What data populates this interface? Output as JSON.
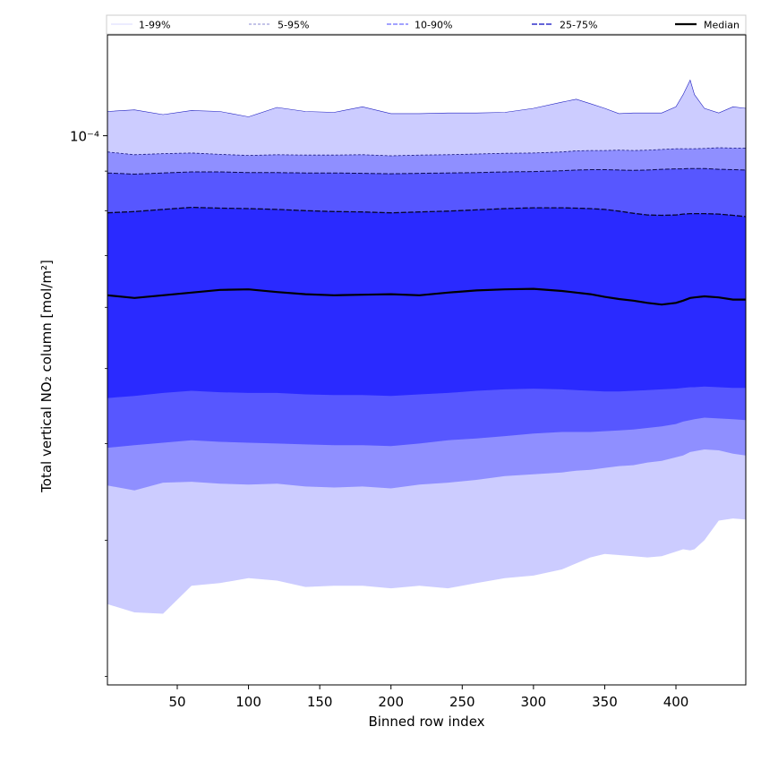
{
  "chart_data": {
    "type": "area",
    "title": "",
    "xlabel": "Binned row index",
    "ylabel": "Total vertical NO₂ column [mol/m²]",
    "yscale": "log",
    "xlim": [
      1,
      449
    ],
    "ylim": [
      1.95e-05,
      0.000135
    ],
    "x_ticks": [
      50,
      100,
      150,
      200,
      250,
      300,
      350,
      400
    ],
    "x_tick_labels": [
      "50",
      "100",
      "150",
      "200",
      "250",
      "300",
      "350",
      "400"
    ],
    "y_tick_label": "10⁻⁴",
    "y_tick_value": 0.0001,
    "y_minor_ticks": [
      2e-05,
      3e-05,
      4e-05,
      5e-05,
      6e-05,
      7e-05,
      8e-05,
      9e-05
    ],
    "legend": {
      "placement": "top",
      "entries": [
        "1-99%",
        "5-95%",
        "10-90%",
        "25-75%",
        "Median"
      ]
    },
    "colors": {
      "band_1_99": "#ccccff",
      "band_5_95": "#8f8fff",
      "band_10_90": "#5757ff",
      "band_25_75": "#2a2aff",
      "median": "#000000",
      "frame": "#000000"
    },
    "x": [
      1,
      20,
      40,
      60,
      80,
      100,
      120,
      140,
      160,
      180,
      200,
      220,
      240,
      260,
      280,
      300,
      320,
      330,
      340,
      350,
      360,
      370,
      380,
      390,
      400,
      405,
      410,
      413,
      420,
      430,
      440,
      449
    ],
    "series": [
      {
        "name": "1-99%",
        "role": "low",
        "values": [
          2.48e-05,
          2.42e-05,
          2.41e-05,
          2.62e-05,
          2.64e-05,
          2.68e-05,
          2.66e-05,
          2.61e-05,
          2.62e-05,
          2.62e-05,
          2.6e-05,
          2.62e-05,
          2.6e-05,
          2.64e-05,
          2.68e-05,
          2.7e-05,
          2.75e-05,
          2.8e-05,
          2.85e-05,
          2.88e-05,
          2.87e-05,
          2.86e-05,
          2.85e-05,
          2.86e-05,
          2.9e-05,
          2.92e-05,
          2.91e-05,
          2.92e-05,
          3e-05,
          3.18e-05,
          3.2e-05,
          3.19e-05
        ]
      },
      {
        "name": "1-99%",
        "role": "high",
        "values": [
          0.0001075,
          0.000108,
          0.0001065,
          0.0001078,
          0.0001075,
          0.0001058,
          0.0001088,
          0.0001075,
          0.0001072,
          0.000109,
          0.0001068,
          0.0001068,
          0.000107,
          0.000107,
          0.0001072,
          0.0001085,
          0.0001105,
          0.0001115,
          0.00011,
          0.0001085,
          0.0001068,
          0.000107,
          0.000107,
          0.000107,
          0.000109,
          0.000113,
          0.000118,
          0.000113,
          0.0001085,
          0.000107,
          0.000109,
          0.0001085
        ]
      },
      {
        "name": "5-95%",
        "role": "low",
        "values": [
          3.53e-05,
          3.48e-05,
          3.56e-05,
          3.57e-05,
          3.55e-05,
          3.54e-05,
          3.55e-05,
          3.52e-05,
          3.51e-05,
          3.52e-05,
          3.5e-05,
          3.54e-05,
          3.56e-05,
          3.59e-05,
          3.63e-05,
          3.65e-05,
          3.67e-05,
          3.69e-05,
          3.7e-05,
          3.72e-05,
          3.74e-05,
          3.75e-05,
          3.78e-05,
          3.8e-05,
          3.84e-05,
          3.86e-05,
          3.9e-05,
          3.91e-05,
          3.93e-05,
          3.92e-05,
          3.88e-05,
          3.86e-05
        ]
      },
      {
        "name": "5-95%",
        "role": "high",
        "values": [
          9.53e-05,
          9.45e-05,
          9.48e-05,
          9.5e-05,
          9.46e-05,
          9.43e-05,
          9.45e-05,
          9.44e-05,
          9.44e-05,
          9.45e-05,
          9.42e-05,
          9.44e-05,
          9.45e-05,
          9.47e-05,
          9.49e-05,
          9.5e-05,
          9.53e-05,
          9.56e-05,
          9.57e-05,
          9.57e-05,
          9.58e-05,
          9.57e-05,
          9.58e-05,
          9.6e-05,
          9.62e-05,
          9.62e-05,
          9.62e-05,
          9.62e-05,
          9.63e-05,
          9.65e-05,
          9.64e-05,
          9.64e-05
        ]
      },
      {
        "name": "10-90%",
        "role": "low",
        "values": [
          3.95e-05,
          3.98e-05,
          4.01e-05,
          4.04e-05,
          4.02e-05,
          4.01e-05,
          4e-05,
          3.99e-05,
          3.98e-05,
          3.98e-05,
          3.97e-05,
          4e-05,
          4.04e-05,
          4.06e-05,
          4.09e-05,
          4.12e-05,
          4.14e-05,
          4.14e-05,
          4.14e-05,
          4.15e-05,
          4.16e-05,
          4.17e-05,
          4.19e-05,
          4.21e-05,
          4.24e-05,
          4.27e-05,
          4.29e-05,
          4.3e-05,
          4.32e-05,
          4.31e-05,
          4.3e-05,
          4.29e-05
        ]
      },
      {
        "name": "10-90%",
        "role": "high",
        "values": [
          8.95e-05,
          8.92e-05,
          8.95e-05,
          8.98e-05,
          8.98e-05,
          8.96e-05,
          8.96e-05,
          8.95e-05,
          8.95e-05,
          8.94e-05,
          8.93e-05,
          8.94e-05,
          8.95e-05,
          8.96e-05,
          8.98e-05,
          8.99e-05,
          9.01e-05,
          9.03e-05,
          9.04e-05,
          9.04e-05,
          9.03e-05,
          9.02e-05,
          9.03e-05,
          9.05e-05,
          9.06e-05,
          9.06e-05,
          9.07e-05,
          9.07e-05,
          9.07e-05,
          9.05e-05,
          9.04e-05,
          9.03e-05
        ]
      },
      {
        "name": "25-75%",
        "role": "low",
        "values": [
          4.58e-05,
          4.61e-05,
          4.65e-05,
          4.68e-05,
          4.66e-05,
          4.65e-05,
          4.65e-05,
          4.63e-05,
          4.62e-05,
          4.62e-05,
          4.61e-05,
          4.63e-05,
          4.65e-05,
          4.68e-05,
          4.7e-05,
          4.71e-05,
          4.7e-05,
          4.69e-05,
          4.68e-05,
          4.67e-05,
          4.67e-05,
          4.68e-05,
          4.69e-05,
          4.7e-05,
          4.71e-05,
          4.72e-05,
          4.73e-05,
          4.73e-05,
          4.74e-05,
          4.73e-05,
          4.72e-05,
          4.72e-05
        ]
      },
      {
        "name": "25-75%",
        "role": "high",
        "values": [
          7.95e-05,
          7.98e-05,
          8.03e-05,
          8.08e-05,
          8.06e-05,
          8.05e-05,
          8.03e-05,
          8e-05,
          7.98e-05,
          7.97e-05,
          7.95e-05,
          7.97e-05,
          7.99e-05,
          8.02e-05,
          8.05e-05,
          8.07e-05,
          8.07e-05,
          8.06e-05,
          8.05e-05,
          8.03e-05,
          7.99e-05,
          7.94e-05,
          7.9e-05,
          7.89e-05,
          7.9e-05,
          7.92e-05,
          7.93e-05,
          7.93e-05,
          7.93e-05,
          7.92e-05,
          7.89e-05,
          7.86e-05
        ]
      },
      {
        "name": "Median",
        "role": "line",
        "values": [
          6.22e-05,
          6.17e-05,
          6.22e-05,
          6.27e-05,
          6.32e-05,
          6.33e-05,
          6.28e-05,
          6.24e-05,
          6.22e-05,
          6.23e-05,
          6.24e-05,
          6.22e-05,
          6.27e-05,
          6.31e-05,
          6.33e-05,
          6.34e-05,
          6.3e-05,
          6.27e-05,
          6.24e-05,
          6.19e-05,
          6.15e-05,
          6.12e-05,
          6.08e-05,
          6.05e-05,
          6.08e-05,
          6.12e-05,
          6.17e-05,
          6.18e-05,
          6.2e-05,
          6.18e-05,
          6.14e-05,
          6.14e-05
        ]
      }
    ]
  }
}
